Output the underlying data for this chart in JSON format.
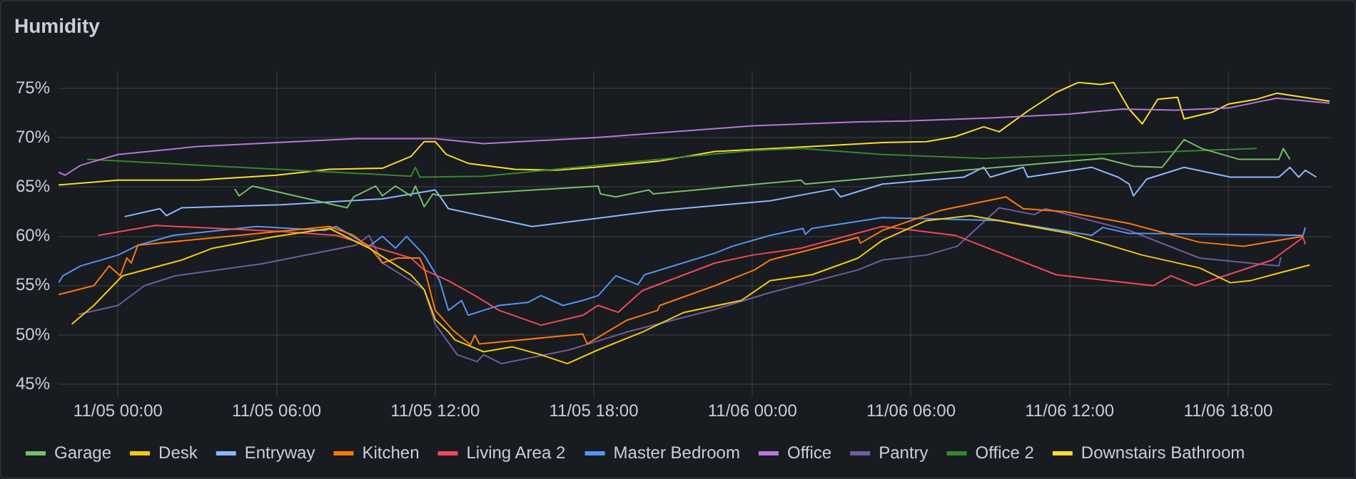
{
  "chart_data": {
    "type": "line",
    "title": "Humidity",
    "marker": "none",
    "line_style": "solid",
    "grid": true,
    "legend": "bottom",
    "xlim": [
      "--11-04T21:45",
      "--11-06T21:55"
    ],
    "xticks": [
      {
        "value": "--11-05T00:00",
        "label": "11/05 00:00"
      },
      {
        "value": "--11-05T06:00",
        "label": "11/05 06:00"
      },
      {
        "value": "--11-05T12:00",
        "label": "11/05 12:00"
      },
      {
        "value": "--11-05T18:00",
        "label": "11/05 18:00"
      },
      {
        "value": "--11-06T00:00",
        "label": "11/06 00:00"
      },
      {
        "value": "--11-06T06:00",
        "label": "11/06 06:00"
      },
      {
        "value": "--11-06T12:00",
        "label": "11/06 12:00"
      },
      {
        "value": "--11-06T18:00",
        "label": "11/06 18:00"
      }
    ],
    "ylim": [
      43.7,
      76.7
    ],
    "yticks": [
      {
        "value": 45,
        "label": "45%"
      },
      {
        "value": 50,
        "label": "50%"
      },
      {
        "value": 55,
        "label": "55%"
      },
      {
        "value": 60,
        "label": "60%"
      },
      {
        "value": 65,
        "label": "65%"
      },
      {
        "value": 70,
        "label": "70%"
      },
      {
        "value": 75,
        "label": "75%"
      }
    ],
    "series": [
      {
        "name": "Garage",
        "color": "#73bf69",
        "x": [
          "--11-05T04:25",
          "--11-05T04:35",
          "--11-05T05:05",
          "--11-05T08:40",
          "--11-05T08:55",
          "--11-05T09:45",
          "--11-05T10:00",
          "--11-05T10:30",
          "--11-05T11:05",
          "--11-05T11:15",
          "--11-05T11:35",
          "--11-05T11:55",
          "--11-05T12:10",
          "--11-05T18:10",
          "--11-05T18:15",
          "--11-05T18:50",
          "--11-05T20:05",
          "--11-05T20:15",
          "--11-06T01:50",
          "--11-06T02:00",
          "--11-06T04:55",
          "--11-06T13:15",
          "--11-06T14:25",
          "--11-06T15:30",
          "--11-06T16:20",
          "--11-06T17:00",
          "--11-06T18:25",
          "--11-06T19:55",
          "--11-06T20:05",
          "--11-06T20:20"
        ],
        "values": [
          64.8,
          64.1,
          65.1,
          62.9,
          64,
          65.1,
          64.1,
          65.1,
          64.1,
          65.1,
          63,
          64.3,
          64.1,
          65.1,
          64.3,
          64,
          64.7,
          64.3,
          65.7,
          65.3,
          66,
          67.9,
          67.1,
          67,
          69.8,
          68.9,
          67.8,
          67.8,
          68.9,
          67.8
        ]
      },
      {
        "name": "Desk",
        "color": "#f2cc0c",
        "x": [
          "--11-04T22:15",
          "--11-04T23:05",
          "--11-05T00:10",
          "--11-05T02:25",
          "--11-05T03:35",
          "--11-05T06:00",
          "--11-05T08:00",
          "--11-05T09:30",
          "--11-05T11:05",
          "--11-05T11:35",
          "--11-05T12:00",
          "--11-05T12:30",
          "--11-05T12:45",
          "--11-05T13:50",
          "--11-05T14:55",
          "--11-05T16:00",
          "--11-05T17:00",
          "--11-05T18:10",
          "--11-05T19:50",
          "--11-05T21:25",
          "--11-05T23:35",
          "--11-06T00:40",
          "--11-06T02:15",
          "--11-06T04:00",
          "--11-06T04:55",
          "--11-06T06:35",
          "--11-06T08:15",
          "--11-06T09:20",
          "--11-06T12:00",
          "--11-06T14:45",
          "--11-06T16:55",
          "--11-06T18:05",
          "--11-06T18:50",
          "--11-06T19:40",
          "--11-06T21:05"
        ],
        "values": [
          51.1,
          53,
          56,
          57.6,
          58.8,
          60,
          60.8,
          58.8,
          56.1,
          54.6,
          51.6,
          50.3,
          49.5,
          48.3,
          48.8,
          48,
          47.1,
          48.5,
          50.3,
          52.3,
          53.5,
          55.5,
          56.1,
          57.8,
          59.6,
          61.6,
          62.1,
          61.6,
          60.3,
          58.1,
          56.8,
          55.3,
          55.5,
          56.1,
          57.1
        ]
      },
      {
        "name": "Entryway",
        "color": "#8ab8ff",
        "x": [
          "--11-05T00:15",
          "--11-05T01:35",
          "--11-05T01:50",
          "--11-05T02:25",
          "--11-05T06:10",
          "--11-05T10:00",
          "--11-05T12:00",
          "--11-05T12:10",
          "--11-05T12:30",
          "--11-05T15:40",
          "--11-05T20:25",
          "--11-06T00:40",
          "--11-06T03:05",
          "--11-06T03:20",
          "--11-06T04:55",
          "--11-06T08:00",
          "--11-06T08:45",
          "--11-06T09:00",
          "--11-06T10:15",
          "--11-06T10:25",
          "--11-06T12:50",
          "--11-06T13:50",
          "--11-06T14:15",
          "--11-06T14:25",
          "--11-06T14:55",
          "--11-06T16:20",
          "--11-06T18:05",
          "--11-06T19:55",
          "--11-06T20:20",
          "--11-06T20:40",
          "--11-06T20:55",
          "--11-06T21:20"
        ],
        "values": [
          62,
          62.8,
          62.1,
          62.9,
          63.2,
          63.8,
          64.7,
          64.1,
          62.8,
          61,
          62.6,
          63.6,
          64.8,
          64,
          65.3,
          66,
          67,
          66,
          67,
          66,
          67,
          66,
          65.3,
          64.1,
          65.8,
          67,
          66,
          66,
          67,
          66,
          66.7,
          66
        ]
      },
      {
        "name": "Kitchen",
        "color": "#ff780a",
        "x": [
          "--11-04T21:45",
          "--11-04T23:05",
          "--11-04T23:40",
          "--11-05T00:05",
          "--11-05T00:20",
          "--11-05T00:30",
          "--11-05T00:45",
          "--11-05T08:00",
          "--11-05T08:55",
          "--11-05T09:35",
          "--11-05T10:00",
          "--11-05T10:35",
          "--11-05T11:25",
          "--11-05T11:35",
          "--11-05T12:00",
          "--11-05T12:40",
          "--11-05T13:20",
          "--11-05T13:30",
          "--11-05T13:40",
          "--11-05T17:35",
          "--11-05T17:45",
          "--11-05T19:15",
          "--11-05T20:25",
          "--11-05T20:30",
          "--11-05T22:35",
          "--11-06T00:05",
          "--11-06T00:40",
          "--11-06T04:00",
          "--11-06T04:05",
          "--11-06T04:55",
          "--11-06T07:05",
          "--11-06T09:35",
          "--11-06T10:15",
          "--11-06T11:50",
          "--11-06T14:15",
          "--11-06T16:55",
          "--11-06T18:35",
          "--11-06T20:50"
        ],
        "values": [
          54.1,
          55,
          57,
          56,
          57.8,
          57.3,
          59.1,
          61,
          60.1,
          58.7,
          57.3,
          57.8,
          57.8,
          56.8,
          52.5,
          50.5,
          49,
          50,
          49.1,
          50.1,
          49.1,
          51.5,
          52.5,
          53,
          55,
          56.6,
          57.6,
          59.9,
          59.3,
          60.6,
          62.6,
          64,
          62.8,
          62.5,
          61.3,
          59.4,
          59,
          60
        ]
      },
      {
        "name": "Living Area 2",
        "color": "#f2495c",
        "x": [
          "--11-04T23:15",
          "--11-05T01:25",
          "--11-05T06:10",
          "--11-05T08:15",
          "--11-05T11:05",
          "--11-05T11:35",
          "--11-05T12:30",
          "--11-05T13:30",
          "--11-05T14:25",
          "--11-05T16:00",
          "--11-05T17:35",
          "--11-05T18:10",
          "--11-05T18:55",
          "--11-05T19:50",
          "--11-05T22:35",
          "--11-06T00:00",
          "--11-06T01:50",
          "--11-06T04:55",
          "--11-06T07:40",
          "--11-06T11:30",
          "--11-06T15:10",
          "--11-06T15:50",
          "--11-06T16:45",
          "--11-06T19:40",
          "--11-06T20:50",
          "--11-06T20:55"
        ],
        "values": [
          60.1,
          61.1,
          60.5,
          60.1,
          57.8,
          56.6,
          55.5,
          54,
          52.5,
          51,
          52,
          53,
          52.3,
          54.5,
          57.3,
          58.1,
          58.8,
          61,
          60.1,
          56.1,
          55,
          56,
          55,
          57.6,
          59.9,
          59.2
        ]
      },
      {
        "name": "Master Bedroom",
        "color": "#5794f2",
        "x": [
          "--11-04T21:45",
          "--11-04T21:55",
          "--11-04T22:35",
          "--11-05T00:00",
          "--11-05T00:45",
          "--11-05T02:05",
          "--11-05T05:15",
          "--11-05T07:50",
          "--11-05T08:15",
          "--11-05T09:30",
          "--11-05T10:00",
          "--11-05T10:30",
          "--11-05T10:55",
          "--11-05T11:35",
          "--11-05T12:10",
          "--11-05T12:30",
          "--11-05T13:00",
          "--11-05T13:15",
          "--11-05T13:50",
          "--11-05T14:25",
          "--11-05T15:30",
          "--11-05T16:00",
          "--11-05T16:50",
          "--11-05T17:35",
          "--11-05T18:10",
          "--11-05T18:50",
          "--11-05T19:40",
          "--11-05T19:55",
          "--11-05T22:35",
          "--11-05T23:15",
          "--11-06T00:40",
          "--11-06T01:55",
          "--11-06T02:00",
          "--11-06T02:15",
          "--11-06T04:55",
          "--11-06T09:20",
          "--11-06T12:50",
          "--11-06T13:15",
          "--11-06T14:15",
          "--11-06T14:45",
          "--11-06T20:50",
          "--11-06T20:55"
        ],
        "values": [
          55.3,
          56,
          57,
          58.1,
          59.1,
          60.1,
          61,
          60.6,
          61,
          59,
          60,
          58.8,
          60,
          58.1,
          55.5,
          52.5,
          53.5,
          52,
          52.5,
          53,
          53.3,
          54,
          53,
          53.5,
          54,
          56,
          55.1,
          56.1,
          58.3,
          59,
          60.1,
          60.8,
          60.2,
          60.8,
          61.9,
          61.6,
          60.1,
          60.9,
          60.3,
          60.3,
          60.1,
          60.9
        ]
      },
      {
        "name": "Office",
        "color": "#b877d9",
        "x": [
          "--11-04T21:45",
          "--11-04T22:00",
          "--11-04T22:35",
          "--11-05T00:00",
          "--11-05T03:00",
          "--11-05T06:00",
          "--11-05T09:00",
          "--11-05T12:00",
          "--11-05T13:50",
          "--11-05T18:00",
          "--11-06T00:00",
          "--11-06T04:00",
          "--11-06T06:00",
          "--11-06T09:00",
          "--11-06T12:00",
          "--11-06T14:00",
          "--11-06T16:00",
          "--11-06T18:00",
          "--11-06T19:50",
          "--11-06T21:50"
        ],
        "values": [
          66.5,
          66.2,
          67.2,
          68.3,
          69.1,
          69.5,
          69.9,
          69.9,
          69.4,
          70,
          71.2,
          71.6,
          71.7,
          72,
          72.4,
          72.9,
          72.8,
          73,
          74,
          73.5
        ]
      },
      {
        "name": "Pantry",
        "color": "#705da0",
        "x": [
          "--11-04T22:30",
          "--11-05T00:00",
          "--11-05T01:00",
          "--11-05T02:10",
          "--11-05T05:25",
          "--11-05T09:00",
          "--11-05T09:30",
          "--11-05T10:00",
          "--11-05T11:05",
          "--11-05T11:35",
          "--11-05T12:00",
          "--11-05T12:50",
          "--11-05T13:35",
          "--11-05T13:50",
          "--11-05T14:30",
          "--11-05T17:05",
          "--11-05T19:15",
          "--11-05T22:35",
          "--11-06T00:40",
          "--11-06T04:00",
          "--11-06T04:55",
          "--11-06T06:35",
          "--11-06T07:45",
          "--11-06T09:20",
          "--11-06T10:40",
          "--11-06T11:05",
          "--11-06T14:15",
          "--11-06T16:55",
          "--11-06T19:55",
          "--11-06T20:00"
        ],
        "values": [
          52.1,
          53,
          55,
          56,
          57.2,
          59.1,
          60.1,
          57.3,
          55.5,
          54.6,
          51.1,
          48,
          47.3,
          48,
          47.1,
          48.5,
          50.3,
          52.6,
          54.3,
          56.6,
          57.6,
          58.1,
          59,
          62.9,
          62.2,
          62.8,
          60.6,
          57.8,
          57,
          57.9
        ]
      },
      {
        "name": "Office 2",
        "color": "#37872d",
        "x": [
          "--11-04T22:50",
          "--11-05T11:05",
          "--11-05T11:15",
          "--11-05T11:25",
          "--11-05T13:50",
          "--11-06T00:00",
          "--11-06T01:50",
          "--11-06T04:55",
          "--11-06T08:45",
          "--11-06T19:05"
        ],
        "values": [
          67.8,
          66.1,
          67,
          66,
          66.1,
          68.7,
          68.9,
          68.3,
          67.9,
          68.9
        ]
      },
      {
        "name": "Downstairs Bathroom",
        "color": "#fade2a",
        "x": [
          "--11-04T21:45",
          "--11-05T00:00",
          "--11-05T03:00",
          "--11-05T06:00",
          "--11-05T08:00",
          "--11-05T10:00",
          "--11-05T11:05",
          "--11-05T11:35",
          "--11-05T12:00",
          "--11-05T12:25",
          "--11-05T13:15",
          "--11-05T15:00",
          "--11-05T16:35",
          "--11-05T18:00",
          "--11-05T20:25",
          "--11-05T22:35",
          "--11-06T02:15",
          "--11-06T04:55",
          "--11-06T06:35",
          "--11-06T07:40",
          "--11-06T08:45",
          "--11-06T09:20",
          "--11-06T10:25",
          "--11-06T11:30",
          "--11-06T12:20",
          "--11-06T13:10",
          "--11-06T13:40",
          "--11-06T14:15",
          "--11-06T14:45",
          "--11-06T15:20",
          "--11-06T16:05",
          "--11-06T16:20",
          "--11-06T17:25",
          "--11-06T18:00",
          "--11-06T19:05",
          "--11-06T19:50",
          "--11-06T21:50"
        ],
        "values": [
          65.2,
          65.7,
          65.7,
          66.2,
          66.8,
          66.9,
          68.1,
          69.6,
          69.6,
          68.3,
          67.4,
          66.8,
          66.7,
          67,
          67.6,
          68.6,
          69.1,
          69.5,
          69.6,
          70.1,
          71.1,
          70.6,
          72.7,
          74.6,
          75.6,
          75.4,
          75.6,
          72.9,
          71.4,
          73.9,
          74.1,
          71.9,
          72.6,
          73.4,
          73.9,
          74.5,
          73.7
        ]
      }
    ]
  }
}
